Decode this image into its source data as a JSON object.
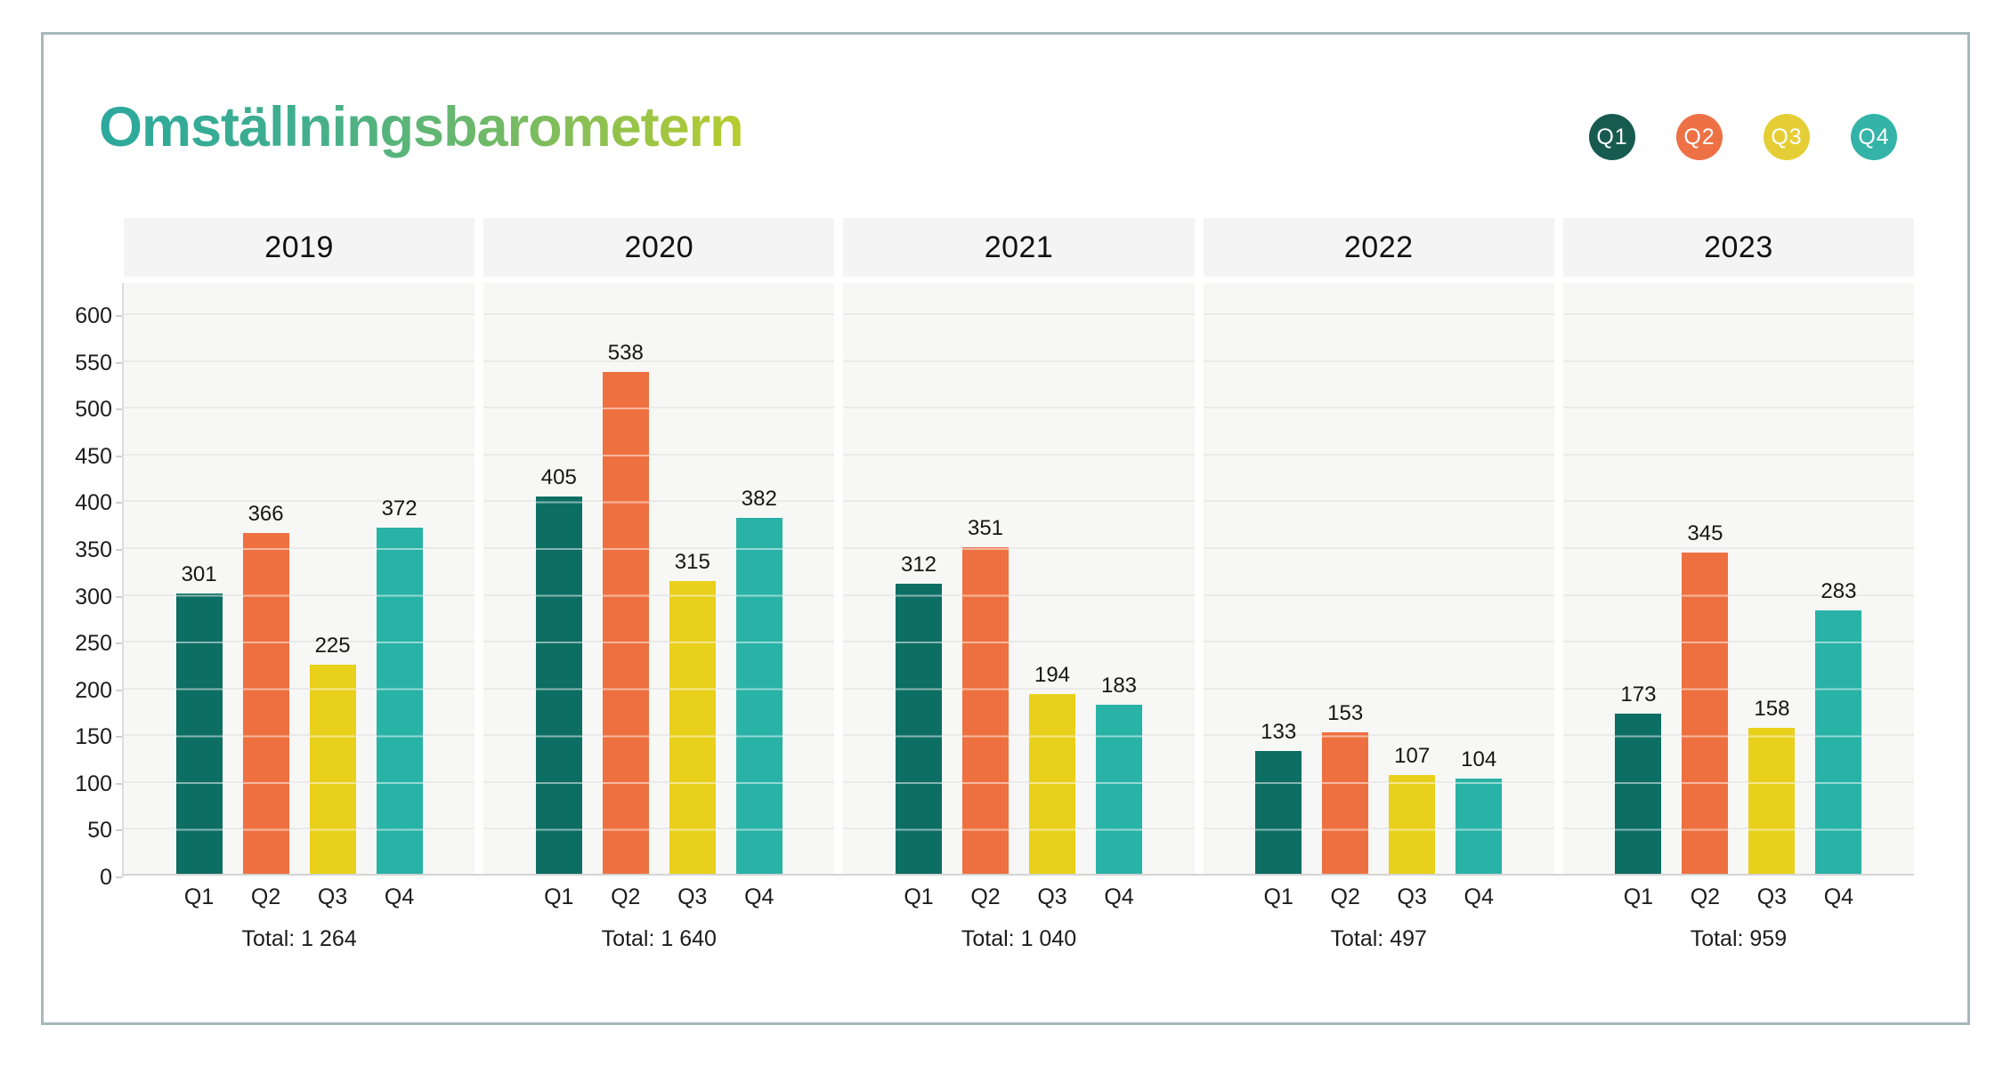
{
  "title": {
    "text": "Omställningsbarometern"
  },
  "colors": {
    "title_gradient_start": "#2ca89d",
    "title_gradient_end": "#b8cc2e",
    "frame_border": "#a7b8bc",
    "panel_header_bg": "#f4f4f4",
    "plot_bg": "#f7f7f6",
    "gridline": "#eaeaea",
    "axis_line": "#d4d4d4",
    "text": "#161616"
  },
  "legend": {
    "items": [
      {
        "label": "Q1",
        "color": "#175a50"
      },
      {
        "label": "Q2",
        "color": "#ed7145"
      },
      {
        "label": "Q3",
        "color": "#e5ce35"
      },
      {
        "label": "Q4",
        "color": "#34b4a9"
      }
    ]
  },
  "chart_data": {
    "type": "bar",
    "title": "Omställningsbarometern",
    "categories": [
      "Q1",
      "Q2",
      "Q3",
      "Q4"
    ],
    "series_colors": {
      "Q1": "#0d6e63",
      "Q2": "#ee7040",
      "Q3": "#e9d01b",
      "Q4": "#29b2a6"
    },
    "groups": [
      {
        "year": "2019",
        "values": [
          301,
          366,
          225,
          372
        ],
        "total": 1264,
        "total_label": "Total: 1 264"
      },
      {
        "year": "2020",
        "values": [
          405,
          538,
          315,
          382
        ],
        "total": 1640,
        "total_label": "Total: 1 640"
      },
      {
        "year": "2021",
        "values": [
          312,
          351,
          194,
          183
        ],
        "total": 1040,
        "total_label": "Total: 1 040"
      },
      {
        "year": "2022",
        "values": [
          133,
          153,
          107,
          104
        ],
        "total": 497,
        "total_label": "Total: 497"
      },
      {
        "year": "2023",
        "values": [
          173,
          345,
          158,
          283
        ],
        "total": 959,
        "total_label": "Total: 959"
      }
    ],
    "xlabel": "",
    "ylabel": "",
    "ylim": [
      0,
      600
    ],
    "ytick_step": 50,
    "grid": true,
    "value_labels": true,
    "legend_position": "top-right"
  }
}
